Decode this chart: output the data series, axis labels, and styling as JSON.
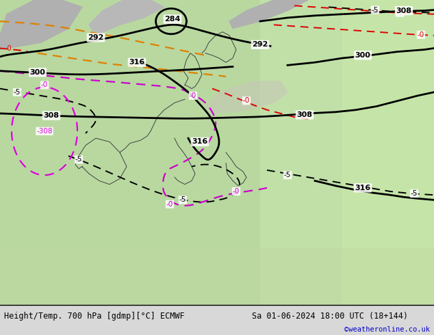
{
  "title_left": "Height/Temp. 700 hPa [gdmp][°C] ECMWF",
  "title_right": "Sa 01-06-2024 18:00 UTC (18+144)",
  "watermark": "©weatheronline.co.uk",
  "bottom_bar_color": "#e0e0e0",
  "watermark_color": "#0000cc",
  "fig_width": 6.34,
  "fig_height": 4.9,
  "dpi": 100,
  "map_bg": "#b8d8a0",
  "map_gray1": "#a8a8a8",
  "map_gray2": "#c0c0c0",
  "map_light_green": "#c8e8b0",
  "map_med_green": "#a8c890"
}
